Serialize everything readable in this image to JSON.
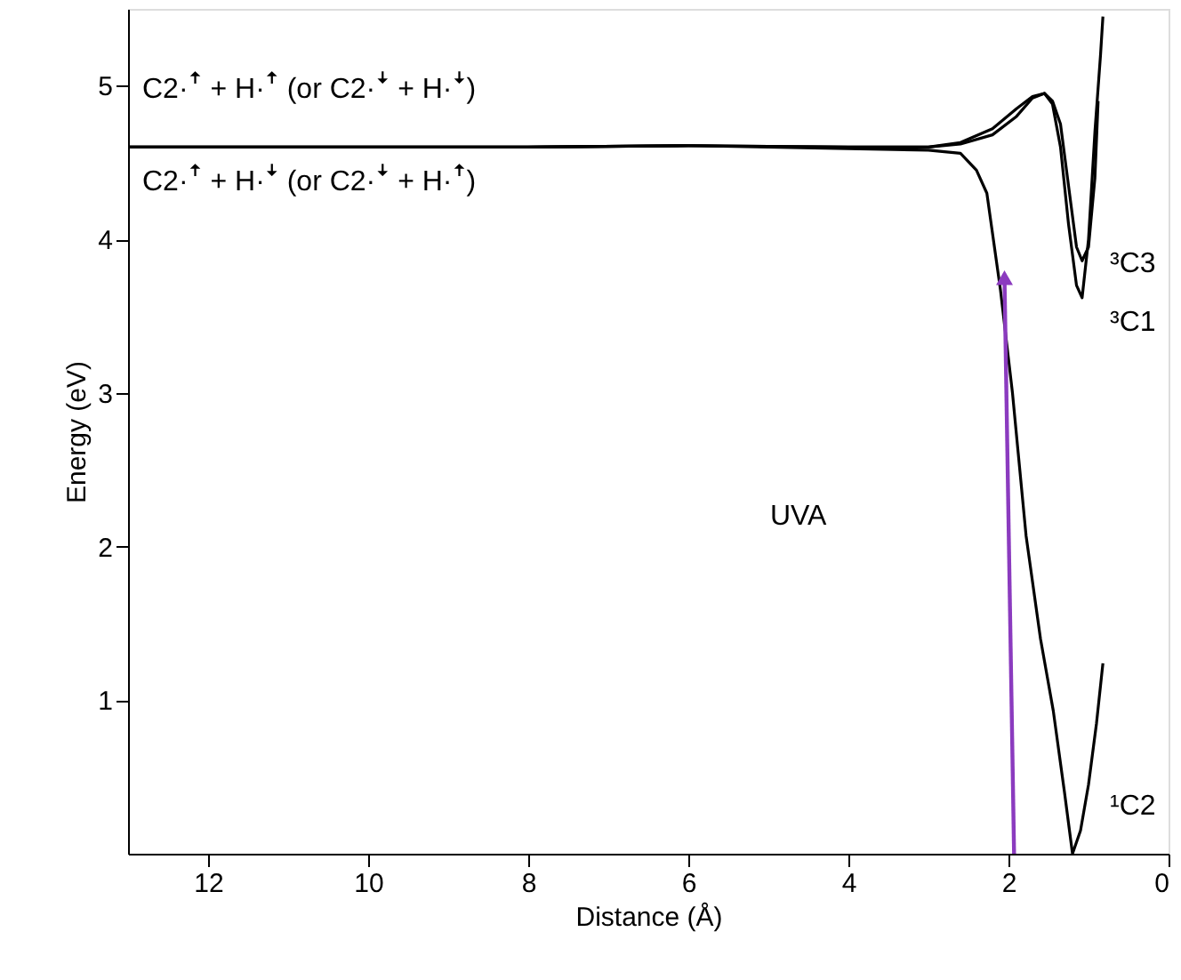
{
  "chart_data": {
    "type": "line",
    "xlabel": "Distance (Å)",
    "ylabel": "Energy  (eV)",
    "xlim": [
      13,
      0
    ],
    "xticks": [
      12,
      10,
      8,
      6,
      4,
      2,
      0
    ],
    "ylim": [
      0,
      5.5
    ],
    "yticks": [
      1,
      2,
      3,
      4,
      5
    ],
    "grid": false,
    "line_style": "solid",
    "series": [
      {
        "color": "#000000",
        "x": [
          13,
          12,
          10,
          8,
          6,
          4,
          3,
          2.6,
          2.4,
          2.27,
          2.1,
          1.95,
          1.78,
          1.6,
          1.44,
          1.3,
          1.2,
          1.1,
          1.0,
          0.9,
          0.82
        ],
        "values": [
          4.6,
          4.6,
          4.6,
          4.6,
          4.61,
          4.59,
          4.58,
          4.56,
          4.45,
          4.3,
          3.67,
          3.0,
          2.07,
          1.4,
          0.93,
          0.4,
          0.0,
          0.15,
          0.45,
          0.85,
          1.24
        ]
      },
      {
        "color": "#000000",
        "x": [
          13,
          12,
          10,
          8,
          6,
          4,
          3,
          2.6,
          2.2,
          1.9,
          1.7,
          1.55,
          1.45,
          1.35,
          1.25,
          1.15,
          1.08,
          1.0,
          0.92,
          0.85,
          0.82
        ],
        "values": [
          4.6,
          4.6,
          4.6,
          4.6,
          4.61,
          4.6,
          4.6,
          4.62,
          4.68,
          4.8,
          4.92,
          4.95,
          4.88,
          4.6,
          4.1,
          3.7,
          3.62,
          4.0,
          4.7,
          5.2,
          5.45
        ]
      },
      {
        "color": "#000000",
        "x": [
          13,
          12,
          10,
          8,
          6,
          4,
          3,
          2.6,
          2.2,
          1.9,
          1.7,
          1.55,
          1.45,
          1.35,
          1.25,
          1.15,
          1.08,
          1.0,
          0.92,
          0.88
        ],
        "values": [
          4.6,
          4.6,
          4.6,
          4.6,
          4.61,
          4.6,
          4.6,
          4.63,
          4.72,
          4.85,
          4.93,
          4.95,
          4.9,
          4.75,
          4.35,
          3.95,
          3.86,
          3.95,
          4.4,
          4.9
        ]
      },
      {
        "color": "#8b3bbf",
        "marker": "triangle",
        "x": [
          1.93,
          2.05
        ],
        "values": [
          0,
          3.75
        ]
      }
    ],
    "annotations": [
      "C2·ꜛ + H·ꜛ    (or C2·ꜜ + H·ꜜ)",
      "C2·ꜛ + H·ꜜ    (or C2·ꜜ + H·ꜛ)",
      "UVA",
      "³C3",
      "³C1",
      "¹C2"
    ]
  }
}
